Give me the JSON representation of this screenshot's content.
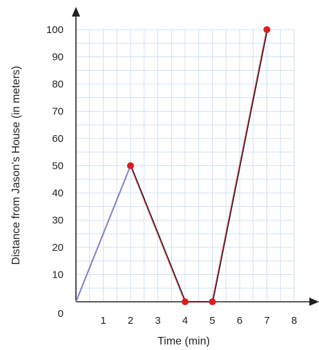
{
  "chart_data": {
    "type": "line",
    "title": "",
    "xlabel": "Time (min)",
    "ylabel": "Distance from Jason’s House (in meters)",
    "xlim": [
      0,
      8
    ],
    "ylim": [
      0,
      100
    ],
    "grid": true,
    "origin_label": "0",
    "x_tick_labels": [
      "1",
      "2",
      "3",
      "4",
      "5",
      "6",
      "7",
      "8"
    ],
    "y_tick_labels": [
      "10",
      "20",
      "30",
      "40",
      "50",
      "60",
      "70",
      "80",
      "90",
      "100"
    ],
    "series": [
      {
        "x": [
          0,
          2,
          4,
          5,
          7
        ],
        "y": [
          0,
          50,
          0,
          0,
          100
        ]
      }
    ],
    "marked_points": [
      {
        "x": 2,
        "y": 50
      },
      {
        "x": 4,
        "y": 0
      },
      {
        "x": 5,
        "y": 0
      },
      {
        "x": 7,
        "y": 100
      }
    ],
    "colors": {
      "grid": "#cfe0f2",
      "axis": "#222222",
      "first_segment": "#7d7fc9",
      "other_segments": "#111111",
      "segment_highlight": "#e0464b",
      "point": "#e11b1b"
    }
  }
}
